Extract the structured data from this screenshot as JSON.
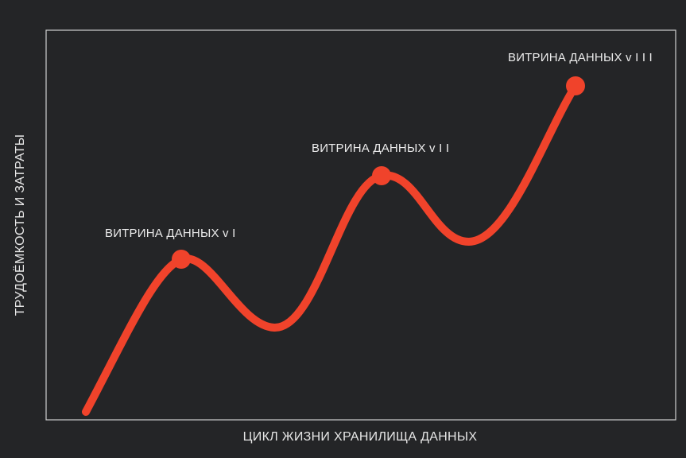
{
  "chart_data": {
    "type": "line",
    "title": "",
    "xlabel": "ЦИКЛ ЖИЗНИ ХРАНИЛИЩА ДАННЫХ",
    "ylabel": "ТРУДОЁМКОСТЬ И ЗАТРАТЫ",
    "grid": false,
    "line_color": "#f0432b",
    "frame_color": "#cfcfcf",
    "background": "#242527",
    "marked_points": [
      {
        "label": "ВИТРИНА ДАННЫХ v I"
      },
      {
        "label": "ВИТРИНА ДАННЫХ v I I"
      },
      {
        "label": "ВИТРИНА ДАННЫХ v I I I"
      }
    ]
  }
}
